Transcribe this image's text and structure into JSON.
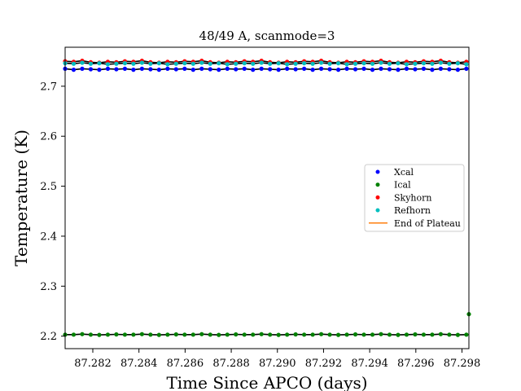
{
  "chart_data": {
    "type": "scatter",
    "title": "48/49 A, scanmode=3",
    "xlabel": "Time Since APCO (days)",
    "ylabel": "Temperature (K)",
    "xlim": [
      87.2808,
      87.2983
    ],
    "ylim": [
      2.175,
      2.778
    ],
    "xticks": [
      87.282,
      87.284,
      87.286,
      87.288,
      87.29,
      87.292,
      87.294,
      87.296,
      87.298
    ],
    "xtick_labels": [
      "87.282",
      "87.284",
      "87.286",
      "87.288",
      "87.290",
      "87.292",
      "87.294",
      "87.296",
      "87.298"
    ],
    "yticks": [
      2.2,
      2.3,
      2.4,
      2.5,
      2.6,
      2.7
    ],
    "ytick_labels": [
      "2.2",
      "2.3",
      "2.4",
      "2.5",
      "2.6",
      "2.7"
    ],
    "grid": false,
    "legend_position": "center-right",
    "x_start": 87.2808,
    "x_step": 0.00037,
    "series": [
      {
        "name": "Xcal",
        "color": "#0000ff",
        "marker": "dot",
        "level": 2.734,
        "jitter": [
          0.001,
          -0.001,
          0.001,
          0.0,
          -0.001,
          0.001,
          0.0
        ]
      },
      {
        "name": "Ical",
        "color": "#008000",
        "marker": "dot",
        "level": 2.203,
        "jitter": [
          0.0,
          0.0,
          0.001,
          0.0,
          -0.0005,
          0.0,
          0.0005
        ],
        "extra_points": [
          {
            "x": 87.2983,
            "y": 2.244
          }
        ]
      },
      {
        "name": "Skyhorn",
        "color": "#ff0000",
        "marker": "dot",
        "level": 2.747,
        "jitter": [
          0.003,
          0.002,
          0.004,
          0.001,
          0.0,
          0.002,
          0.001
        ]
      },
      {
        "name": "Refhorn",
        "color": "#00bfbf",
        "marker": "dot",
        "level": 2.745,
        "jitter": [
          0.001,
          0.0,
          0.002,
          0.0,
          0.001,
          -0.001,
          0.0
        ]
      },
      {
        "name": "End of Plateau",
        "color": "#ff7f0e",
        "marker": "line"
      }
    ]
  }
}
